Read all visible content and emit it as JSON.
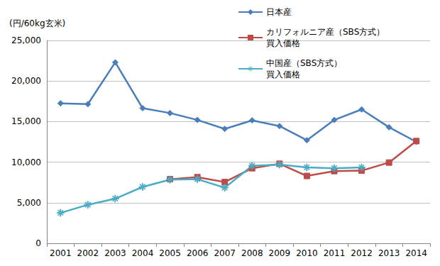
{
  "chart_data": {
    "type": "line",
    "y_label": "(円/60kg玄米)",
    "categories": [
      "2001",
      "2002",
      "2003",
      "2004",
      "2005",
      "2006",
      "2007",
      "2008",
      "2009",
      "2010",
      "2011",
      "2012",
      "2013",
      "2014"
    ],
    "series": [
      {
        "name": "日本産",
        "color": "#4a7ebb",
        "marker": "diamond",
        "values": [
          17250,
          17150,
          22300,
          16650,
          16050,
          15200,
          14100,
          15150,
          14450,
          12700,
          15200,
          16500,
          14300,
          12500
        ]
      },
      {
        "name": "カリフォルニア産（SBS方式）\n買入価格",
        "color": "#be4b48",
        "marker": "square",
        "values": [
          null,
          null,
          null,
          null,
          7900,
          8150,
          7550,
          9250,
          9800,
          8300,
          8900,
          8950,
          9950,
          12600
        ]
      },
      {
        "name": "中国産（SBS方式）\n買入価格",
        "color": "#4bacc6",
        "marker": "asterisk",
        "values": [
          3750,
          4750,
          5500,
          6950,
          7850,
          7900,
          6850,
          9550,
          9700,
          9350,
          9250,
          9350,
          null,
          null
        ]
      }
    ],
    "ylim": [
      0,
      25000
    ],
    "yticks": [
      0,
      {
        "value": 5000,
        "label": "5,000"
      },
      {
        "value": 10000,
        "label": "10,000"
      },
      {
        "value": 15000,
        "label": "15,000"
      },
      {
        "value": 20000,
        "label": "20,000"
      },
      {
        "value": 25000,
        "label": "25,000"
      }
    ],
    "grid": true,
    "legend": "top-right"
  }
}
